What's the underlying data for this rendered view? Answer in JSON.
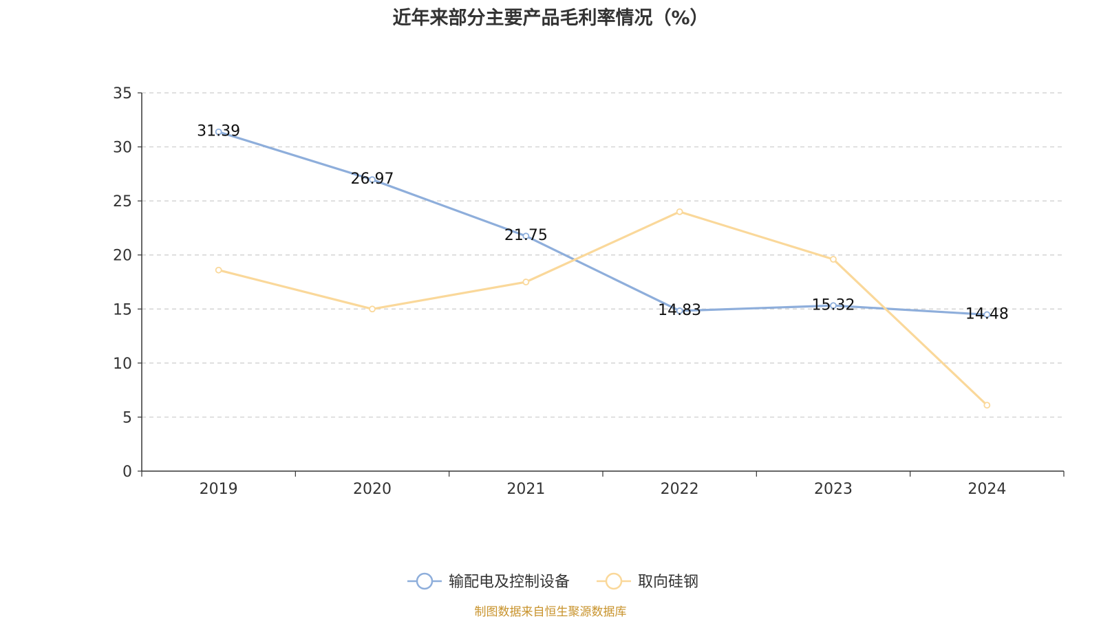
{
  "chart_data": {
    "type": "line",
    "title": "近年来部分主要产品毛利率情况（%）",
    "categories": [
      "2019",
      "2020",
      "2021",
      "2022",
      "2023",
      "2024"
    ],
    "ylim": [
      0,
      35
    ],
    "yticks": [
      0,
      5,
      10,
      15,
      20,
      25,
      30,
      35
    ],
    "grid": true,
    "legend_position": "bottom-center",
    "series": [
      {
        "name": "输配电及控制设备",
        "color": "#8eaedb",
        "values": [
          31.39,
          26.97,
          21.75,
          14.83,
          15.32,
          14.48
        ],
        "labels": [
          "31.39",
          "26.97",
          "21.75",
          "14.83",
          "15.32",
          "14.48"
        ]
      },
      {
        "name": "取向硅钢",
        "color": "#fad89a",
        "values": [
          18.6,
          15.0,
          17.5,
          24.0,
          19.6,
          6.1
        ]
      }
    ]
  },
  "source": "制图数据来自恒生聚源数据库"
}
